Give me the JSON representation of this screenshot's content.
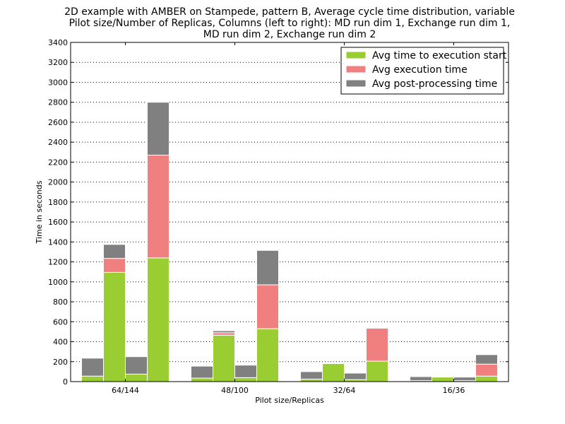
{
  "chart_data": {
    "type": "bar",
    "stacked": true,
    "title_lines": [
      "2D example with AMBER on Stampede, pattern B, Average cycle time distribution, variable",
      "Pilot size/Number of Replicas, Columns (left to right): MD run dim 1, Exchange run dim 1,",
      "MD run dim 2, Exchange run dim 2"
    ],
    "xlabel": "Pilot size/Replicas",
    "ylabel": "Time in seconds",
    "ylim": [
      0,
      3400
    ],
    "yticks": [
      "0",
      "200",
      "400",
      "600",
      "800",
      "1000",
      "1200",
      "1400",
      "1600",
      "1800",
      "2000",
      "2200",
      "2400",
      "2600",
      "2800",
      "3000",
      "3200",
      "3400"
    ],
    "grid": "horizontal dotted",
    "legend_position": "top-right",
    "categories": [
      "64/144",
      "48/100",
      "32/64",
      "16/36"
    ],
    "columns_per_category": [
      "MD run dim 1",
      "Exchange run dim 1",
      "MD run dim 2",
      "Exchange run dim 2"
    ],
    "series": [
      {
        "name": "Avg time to execution start",
        "color": "#9acd32",
        "values": [
          [
            55,
            1095,
            75,
            1240
          ],
          [
            35,
            465,
            40,
            530
          ],
          [
            25,
            180,
            20,
            205
          ],
          [
            10,
            45,
            10,
            55
          ]
        ]
      },
      {
        "name": "Avg execution time",
        "color": "#f08080",
        "values": [
          [
            0,
            140,
            0,
            1030
          ],
          [
            0,
            25,
            0,
            440
          ],
          [
            0,
            0,
            0,
            330
          ],
          [
            0,
            0,
            0,
            120
          ]
        ]
      },
      {
        "name": "Avg post-processing time",
        "color": "#808080",
        "values": [
          [
            180,
            140,
            175,
            530
          ],
          [
            120,
            20,
            125,
            345
          ],
          [
            75,
            0,
            65,
            0
          ],
          [
            40,
            0,
            35,
            95
          ]
        ]
      }
    ]
  }
}
